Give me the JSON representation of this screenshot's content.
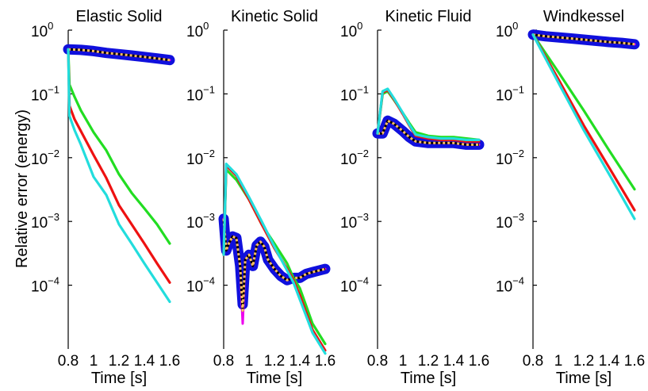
{
  "figure": {
    "ylabel": "Relative error (energy)",
    "xlabel": "Time [s]"
  },
  "chart_data": [
    {
      "type": "line",
      "title": "Elastic Solid",
      "xlabel": "Time [s]",
      "ylabel": "Relative error (energy)",
      "yscale": "log",
      "ylim": [
        1e-05,
        1
      ],
      "xlim": [
        0.8,
        1.6
      ],
      "xticks": [
        "0.8",
        "1",
        "1.2",
        "1.4",
        "1.6"
      ],
      "yticks": [
        "10^0",
        "10^-1",
        "10^-2",
        "10^-3",
        "10^-4"
      ],
      "series": [
        {
          "color": "#1010dd",
          "style": "triangles",
          "x": [
            0.8,
            0.9,
            1.0,
            1.1,
            1.2,
            1.3,
            1.4,
            1.5,
            1.6
          ],
          "y": [
            0.5,
            0.49,
            0.47,
            0.44,
            0.42,
            0.4,
            0.38,
            0.36,
            0.34
          ]
        },
        {
          "color": "#ee00ee",
          "style": "solid",
          "x": [
            0.8,
            0.9,
            1.0,
            1.1,
            1.2,
            1.3,
            1.4,
            1.5,
            1.6
          ],
          "y": [
            0.5,
            0.49,
            0.47,
            0.44,
            0.42,
            0.4,
            0.38,
            0.36,
            0.34
          ]
        },
        {
          "color": "#ffc060",
          "style": "dashed",
          "x": [
            0.8,
            0.9,
            1.0,
            1.1,
            1.2,
            1.3,
            1.4,
            1.5,
            1.6
          ],
          "y": [
            0.5,
            0.49,
            0.47,
            0.44,
            0.42,
            0.4,
            0.38,
            0.36,
            0.34
          ]
        },
        {
          "color": "#22dd22",
          "style": "solid",
          "x": [
            0.8,
            0.81,
            0.85,
            0.9,
            1.0,
            1.1,
            1.2,
            1.3,
            1.4,
            1.5,
            1.6
          ],
          "y": [
            0.5,
            0.14,
            0.09,
            0.055,
            0.025,
            0.013,
            0.0055,
            0.0028,
            0.0016,
            0.0009,
            0.00045
          ]
        },
        {
          "color": "#ee1111",
          "style": "solid",
          "x": [
            0.8,
            0.81,
            0.85,
            0.9,
            1.0,
            1.1,
            1.2,
            1.3,
            1.4,
            1.5,
            1.6
          ],
          "y": [
            0.5,
            0.065,
            0.04,
            0.026,
            0.011,
            0.0048,
            0.0018,
            0.0009,
            0.00045,
            0.00022,
            0.00011
          ]
        },
        {
          "color": "#22dddd",
          "style": "solid",
          "x": [
            0.8,
            0.81,
            0.85,
            0.9,
            1.0,
            1.1,
            1.2,
            1.3,
            1.4,
            1.5,
            1.6
          ],
          "y": [
            0.5,
            0.045,
            0.027,
            0.016,
            0.005,
            0.0026,
            0.0009,
            0.00045,
            0.00022,
            0.00011,
            5.5e-05
          ]
        }
      ]
    },
    {
      "type": "line",
      "title": "Kinetic Solid",
      "xlabel": "Time [s]",
      "ylabel": "",
      "yscale": "log",
      "ylim": [
        1e-05,
        1
      ],
      "xlim": [
        0.8,
        1.6
      ],
      "xticks": [
        "0.8",
        "1",
        "1.2",
        "1.4",
        "1.6"
      ],
      "yticks": [
        "10^0",
        "10^-1",
        "10^-2",
        "10^-3",
        "10^-4"
      ],
      "series": [
        {
          "color": "#1010dd",
          "style": "triangles",
          "x": [
            0.8,
            0.82,
            0.84,
            0.87,
            0.9,
            0.93,
            0.95,
            0.97,
            1.0,
            1.03,
            1.06,
            1.09,
            1.12,
            1.15,
            1.2,
            1.25,
            1.3,
            1.35,
            1.4,
            1.45,
            1.5,
            1.55,
            1.6
          ],
          "y": [
            0.0011,
            0.00035,
            0.00045,
            0.00058,
            0.00055,
            0.0002,
            5e-05,
            0.00025,
            0.0003,
            0.0002,
            0.00042,
            0.00048,
            0.0004,
            0.00025,
            0.00018,
            0.00014,
            0.00012,
            0.00013,
            0.00013,
            0.00015,
            0.00016,
            0.00017,
            0.00018
          ]
        },
        {
          "color": "#ee00ee",
          "style": "solid",
          "x": [
            0.8,
            0.82,
            0.84,
            0.87,
            0.9,
            0.93,
            0.95,
            0.97,
            1.0,
            1.03,
            1.06,
            1.09,
            1.12,
            1.15,
            1.2,
            1.25,
            1.3,
            1.35,
            1.4,
            1.45,
            1.5,
            1.55,
            1.6
          ],
          "y": [
            0.0011,
            0.00035,
            0.00045,
            0.00058,
            0.00055,
            0.0002,
            2.5e-05,
            0.00025,
            0.0003,
            0.0002,
            0.00042,
            0.00048,
            0.0004,
            0.00025,
            0.00018,
            0.00014,
            0.00012,
            0.00013,
            0.00013,
            0.00015,
            0.00016,
            0.00017,
            0.00018
          ]
        },
        {
          "color": "#ffc060",
          "style": "dashed",
          "x": [
            0.8,
            0.82,
            0.84,
            0.87,
            0.9,
            0.93,
            0.95,
            0.97,
            1.0,
            1.03,
            1.06,
            1.09,
            1.12,
            1.15,
            1.2,
            1.25,
            1.3,
            1.35,
            1.4,
            1.45,
            1.5,
            1.55,
            1.6
          ],
          "y": [
            0.0011,
            0.00035,
            0.00045,
            0.00058,
            0.00055,
            0.0002,
            4e-05,
            0.00025,
            0.0003,
            0.0002,
            0.00042,
            0.00048,
            0.0004,
            0.00025,
            0.00018,
            0.00014,
            0.00012,
            0.00013,
            0.00013,
            0.00015,
            0.00016,
            0.00017,
            0.00018
          ]
        },
        {
          "color": "#22dd22",
          "style": "solid",
          "x": [
            0.8,
            0.82,
            0.9,
            1.0,
            1.1,
            1.2,
            1.3,
            1.35,
            1.4,
            1.5,
            1.6
          ],
          "y": [
            0.0003,
            0.0065,
            0.0045,
            0.0022,
            0.0009,
            0.00045,
            0.00022,
            0.00013,
            9e-05,
            2.5e-05,
            1.2e-05
          ]
        },
        {
          "color": "#ee1111",
          "style": "solid",
          "x": [
            0.8,
            0.82,
            0.9,
            1.0,
            1.1,
            1.2,
            1.3,
            1.35,
            1.4,
            1.5,
            1.6
          ],
          "y": [
            0.0003,
            0.0075,
            0.0052,
            0.0022,
            0.0009,
            0.00038,
            0.00018,
            0.00012,
            7e-05,
            2e-05,
            9.5e-06
          ]
        },
        {
          "color": "#22dddd",
          "style": "solid",
          "x": [
            0.8,
            0.82,
            0.9,
            1.0,
            1.1,
            1.2,
            1.3,
            1.35,
            1.4,
            1.5,
            1.6
          ],
          "y": [
            0.0003,
            0.008,
            0.0055,
            0.0024,
            0.001,
            0.0004,
            0.00017,
            0.00011,
            6e-05,
            1.8e-05,
            8.5e-06
          ]
        }
      ]
    },
    {
      "type": "line",
      "title": "Kinetic Fluid",
      "xlabel": "Time [s]",
      "ylabel": "",
      "yscale": "log",
      "ylim": [
        1e-05,
        1
      ],
      "xlim": [
        0.8,
        1.6
      ],
      "xticks": [
        "0.8",
        "1",
        "1.2",
        "1.4",
        "1.6"
      ],
      "yticks": [
        "10^0",
        "10^-1",
        "10^-2",
        "10^-3",
        "10^-4"
      ],
      "series": [
        {
          "color": "#1010dd",
          "style": "triangles",
          "x": [
            0.8,
            0.84,
            0.88,
            0.93,
            1.0,
            1.05,
            1.1,
            1.2,
            1.3,
            1.4,
            1.5,
            1.6
          ],
          "y": [
            0.024,
            0.024,
            0.038,
            0.034,
            0.026,
            0.021,
            0.018,
            0.017,
            0.017,
            0.017,
            0.016,
            0.016
          ]
        },
        {
          "color": "#ee00ee",
          "style": "solid",
          "x": [
            0.8,
            0.84,
            0.88,
            0.93,
            1.0,
            1.05,
            1.1,
            1.2,
            1.3,
            1.4,
            1.5,
            1.6
          ],
          "y": [
            0.024,
            0.024,
            0.038,
            0.034,
            0.026,
            0.021,
            0.018,
            0.017,
            0.017,
            0.017,
            0.016,
            0.016
          ]
        },
        {
          "color": "#ffc060",
          "style": "dashed",
          "x": [
            0.8,
            0.84,
            0.88,
            0.93,
            1.0,
            1.05,
            1.1,
            1.2,
            1.3,
            1.4,
            1.5,
            1.6
          ],
          "y": [
            0.024,
            0.024,
            0.038,
            0.034,
            0.026,
            0.021,
            0.018,
            0.017,
            0.017,
            0.017,
            0.016,
            0.016
          ]
        },
        {
          "color": "#22dd22",
          "style": "solid",
          "x": [
            0.8,
            0.84,
            0.88,
            0.93,
            1.0,
            1.05,
            1.1,
            1.2,
            1.3,
            1.4,
            1.5,
            1.6
          ],
          "y": [
            0.024,
            0.1,
            0.11,
            0.08,
            0.05,
            0.035,
            0.025,
            0.022,
            0.021,
            0.021,
            0.02,
            0.019
          ]
        },
        {
          "color": "#ee1111",
          "style": "solid",
          "x": [
            0.8,
            0.84,
            0.88,
            0.93,
            1.0,
            1.05,
            1.1,
            1.2,
            1.3,
            1.4,
            1.5,
            1.6
          ],
          "y": [
            0.024,
            0.105,
            0.115,
            0.082,
            0.048,
            0.032,
            0.022,
            0.02,
            0.019,
            0.019,
            0.018,
            0.018
          ]
        },
        {
          "color": "#22dddd",
          "style": "solid",
          "x": [
            0.8,
            0.84,
            0.88,
            0.93,
            1.0,
            1.05,
            1.1,
            1.2,
            1.3,
            1.4,
            1.5,
            1.6
          ],
          "y": [
            0.024,
            0.11,
            0.12,
            0.085,
            0.05,
            0.033,
            0.023,
            0.021,
            0.02,
            0.02,
            0.019,
            0.019
          ]
        }
      ]
    },
    {
      "type": "line",
      "title": "Windkessel",
      "xlabel": "Time [s]",
      "ylabel": "",
      "yscale": "log",
      "ylim": [
        1e-05,
        1
      ],
      "xlim": [
        0.8,
        1.6
      ],
      "xticks": [
        "0.8",
        "1",
        "1.2",
        "1.4",
        "1.6"
      ],
      "yticks": [
        "10^0",
        "10^-1",
        "10^-2",
        "10^-3",
        "10^-4"
      ],
      "series": [
        {
          "color": "#1010dd",
          "style": "triangles",
          "x": [
            0.8,
            0.9,
            1.0,
            1.1,
            1.2,
            1.3,
            1.4,
            1.5,
            1.6
          ],
          "y": [
            0.85,
            0.8,
            0.77,
            0.74,
            0.71,
            0.68,
            0.65,
            0.63,
            0.6
          ]
        },
        {
          "color": "#ee00ee",
          "style": "solid",
          "x": [
            0.8,
            0.9,
            1.0,
            1.1,
            1.2,
            1.3,
            1.4,
            1.5,
            1.6
          ],
          "y": [
            0.85,
            0.8,
            0.77,
            0.74,
            0.71,
            0.68,
            0.65,
            0.63,
            0.6
          ]
        },
        {
          "color": "#ffc060",
          "style": "dashed",
          "x": [
            0.8,
            0.9,
            1.0,
            1.1,
            1.2,
            1.3,
            1.4,
            1.5,
            1.6
          ],
          "y": [
            0.85,
            0.8,
            0.77,
            0.74,
            0.71,
            0.68,
            0.65,
            0.63,
            0.6
          ]
        },
        {
          "color": "#22dd22",
          "style": "solid",
          "x": [
            0.8,
            1.0,
            1.2,
            1.4,
            1.6
          ],
          "y": [
            0.85,
            0.22,
            0.055,
            0.013,
            0.0032
          ]
        },
        {
          "color": "#ee1111",
          "style": "solid",
          "x": [
            0.8,
            1.0,
            1.2,
            1.4,
            1.6
          ],
          "y": [
            0.85,
            0.17,
            0.032,
            0.007,
            0.0015
          ]
        },
        {
          "color": "#22dddd",
          "style": "solid",
          "x": [
            0.8,
            1.0,
            1.2,
            1.4,
            1.6
          ],
          "y": [
            0.85,
            0.15,
            0.027,
            0.0055,
            0.0011
          ]
        }
      ]
    }
  ]
}
